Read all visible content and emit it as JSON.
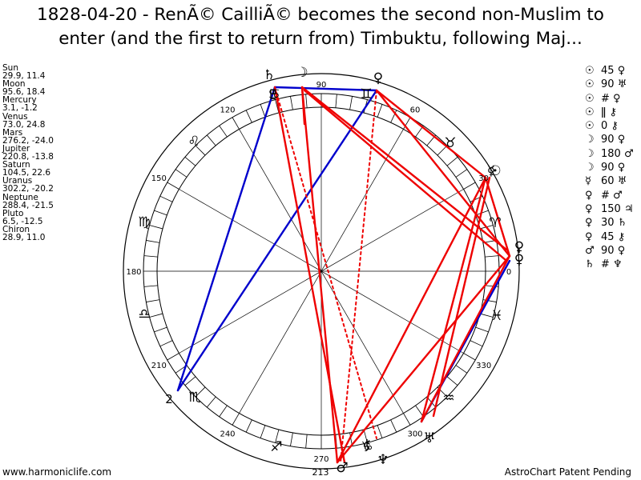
{
  "title_line1": "1828-04-20 - RenÃ© CailliÃ© becomes the second non-Muslim to",
  "title_line2": "enter (and the first to return from) Timbuktu, following Maj...",
  "planets": [
    {
      "name": "Sun",
      "coords": "29.9, 11.4"
    },
    {
      "name": "Moon",
      "coords": "95.6, 18.4"
    },
    {
      "name": "Mercury",
      "coords": "3.1, -1.2"
    },
    {
      "name": "Venus",
      "coords": "73.0, 24.8"
    },
    {
      "name": "Mars",
      "coords": "276.2, -24.0"
    },
    {
      "name": "Jupiter",
      "coords": "220.8, -13.8"
    },
    {
      "name": "Saturn",
      "coords": "104.5, 22.6"
    },
    {
      "name": "Uranus",
      "coords": "302.2, -20.2"
    },
    {
      "name": "Neptune",
      "coords": "288.4, -21.5"
    },
    {
      "name": "Pluto",
      "coords": "6.5, -12.5"
    },
    {
      "name": "Chiron",
      "coords": "28.9, 11.0"
    }
  ],
  "aspects": [
    {
      "p1": "☉",
      "asp": "45",
      "p2": "♀"
    },
    {
      "p1": "☉",
      "asp": "90",
      "p2": "♅"
    },
    {
      "p1": "☉",
      "asp": "#",
      "p2": "♀"
    },
    {
      "p1": "☉",
      "asp": "ǁ",
      "p2": "⚷"
    },
    {
      "p1": "☉",
      "asp": "0",
      "p2": "⚷"
    },
    {
      "p1": "☽",
      "asp": "90",
      "p2": "♀"
    },
    {
      "p1": "☽",
      "asp": "180",
      "p2": "♂"
    },
    {
      "p1": "☽",
      "asp": "90",
      "p2": "♀"
    },
    {
      "p1": "☿",
      "asp": "60",
      "p2": "♅"
    },
    {
      "p1": "♀",
      "asp": "#",
      "p2": "♂"
    },
    {
      "p1": "♀",
      "asp": "150",
      "p2": "♃"
    },
    {
      "p1": "♀",
      "asp": "30",
      "p2": "♄"
    },
    {
      "p1": "♀",
      "asp": "45",
      "p2": "⚷"
    },
    {
      "p1": "♂",
      "asp": "90",
      "p2": "♀"
    },
    {
      "p1": "♄",
      "asp": "#",
      "p2": "♆"
    }
  ],
  "degree_labels": [
    "90",
    "60",
    "30",
    "0",
    "330",
    "300",
    "270",
    "240",
    "210",
    "180",
    "150",
    "120"
  ],
  "extra_labels": {
    "ascendant_num": "2",
    "mars_degree": "213"
  },
  "zodiac": [
    {
      "sign": "aries",
      "glyph": "♈"
    },
    {
      "sign": "taurus",
      "glyph": "♉"
    },
    {
      "sign": "gemini",
      "glyph": "♊"
    },
    {
      "sign": "cancer",
      "glyph": "♋"
    },
    {
      "sign": "leo",
      "glyph": "♌"
    },
    {
      "sign": "virgo",
      "glyph": "♍"
    },
    {
      "sign": "libra",
      "glyph": "♎"
    },
    {
      "sign": "scorpio",
      "glyph": "♏"
    },
    {
      "sign": "sagittarius",
      "glyph": "♐"
    },
    {
      "sign": "capricorn",
      "glyph": "♑"
    },
    {
      "sign": "aquarius",
      "glyph": "♒"
    },
    {
      "sign": "pisces",
      "glyph": "♓"
    }
  ],
  "planet_glyphs": {
    "saturn": "♄",
    "moon": "☽",
    "venus": "♀",
    "sun": "☉",
    "mercury": "☿",
    "uranus": "♅",
    "neptune": "♆",
    "mars": "♂",
    "pluto": "♇",
    "chiron": "⚷"
  },
  "colors": {
    "hard_aspect": "#ee0000",
    "soft_aspect": "#0000cc",
    "line": "#000000"
  },
  "footer_left": "www.harmoniclife.com",
  "footer_right": "AstroChart Patent Pending"
}
